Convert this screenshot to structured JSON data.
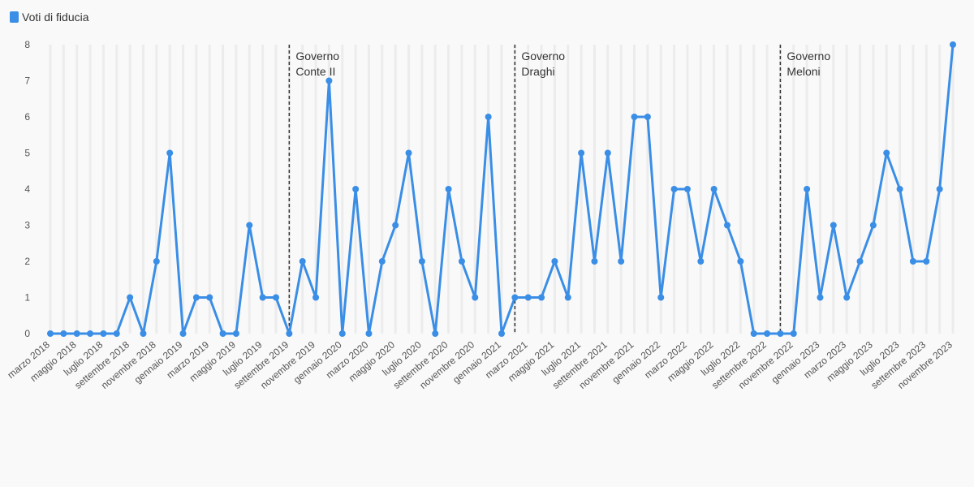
{
  "chart_data": {
    "type": "line",
    "title": "",
    "xlabel": "",
    "ylabel": "",
    "ylim": [
      0,
      8
    ],
    "yticks": [
      0,
      1,
      2,
      3,
      4,
      5,
      6,
      7,
      8
    ],
    "grid": "vertical",
    "legend_position": "top-left",
    "series": [
      {
        "name": "Voti di fiducia",
        "color": "#3a8ee6",
        "values": [
          0,
          0,
          0,
          0,
          0,
          0,
          1,
          0,
          2,
          5,
          0,
          1,
          1,
          0,
          0,
          3,
          1,
          1,
          0,
          2,
          1,
          7,
          0,
          4,
          0,
          2,
          3,
          5,
          2,
          0,
          4,
          2,
          1,
          6,
          0,
          1,
          1,
          1,
          2,
          1,
          5,
          2,
          5,
          2,
          6,
          6,
          1,
          4,
          4,
          2,
          4,
          3,
          2,
          0,
          0,
          0,
          0,
          4,
          1,
          3,
          1,
          2,
          3,
          5,
          4,
          2,
          2,
          4,
          8
        ]
      }
    ],
    "x_labels": [
      "marzo 2018",
      "maggio 2018",
      "luglio 2018",
      "settembre 2018",
      "novembre 2018",
      "gennaio 2019",
      "marzo 2019",
      "maggio 2019",
      "luglio 2019",
      "settembre 2019",
      "novembre 2019",
      "gennaio 2020",
      "marzo 2020",
      "maggio 2020",
      "luglio 2020",
      "settembre 2020",
      "novembre 2020",
      "gennaio 2021",
      "marzo 2021",
      "maggio 2021",
      "luglio 2021",
      "settembre 2021",
      "novembre 2021",
      "gennaio 2022",
      "marzo 2022",
      "maggio 2022",
      "luglio 2022",
      "settembre 2022",
      "novembre 2022",
      "gennaio 2023",
      "marzo 2023",
      "maggio 2023",
      "luglio 2023",
      "settembre 2023",
      "novembre 2023"
    ],
    "x_start": "marzo 2018",
    "x_end": "novembre 2023",
    "annotations": [
      {
        "at": "settembre 2019",
        "line1": "Governo",
        "line2": "Conte II"
      },
      {
        "at": "febbraio 2021",
        "line1": "Governo",
        "line2": "Draghi"
      },
      {
        "at": "ottobre 2022",
        "line1": "Governo",
        "line2": "Meloni"
      }
    ]
  }
}
